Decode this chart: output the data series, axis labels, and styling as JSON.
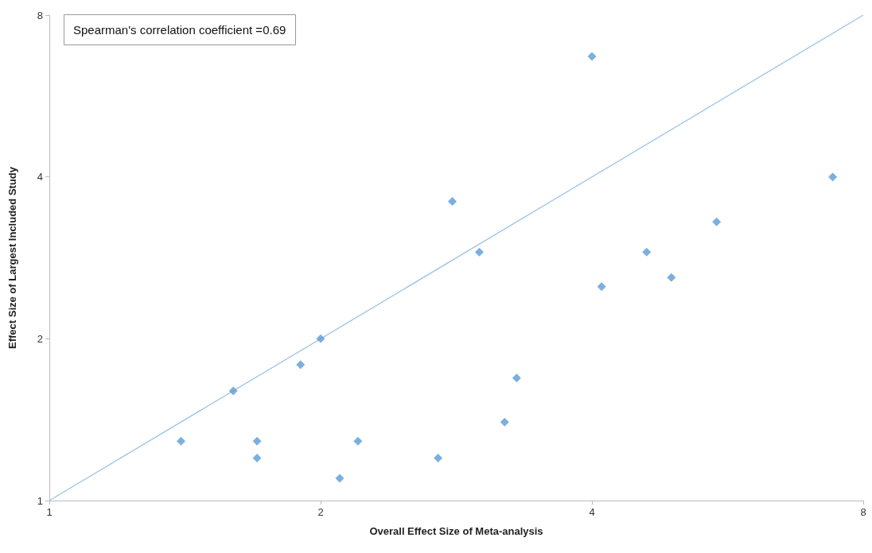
{
  "chart_data": {
    "type": "scatter",
    "xlabel": "Overall Effect Size of Meta-analysis",
    "ylabel": "Effect Size of Largest Included Study",
    "annotations": [
      "Spearman's correlation coefficient =0.69"
    ],
    "log": "xy",
    "grid": false,
    "marker": "diamond",
    "xlim": [
      1,
      8
    ],
    "xticks": [
      1,
      2,
      4,
      8
    ],
    "ylim": [
      1,
      8
    ],
    "yticks": [
      1,
      2,
      4,
      8
    ],
    "series": [
      {
        "type": "scatter",
        "color": "#5b9bd5",
        "x": [
          1.4,
          1.6,
          1.7,
          1.7,
          1.9,
          2,
          2.1,
          2.2,
          2.7,
          2.8,
          3,
          3.2,
          3.3,
          4,
          4.1,
          4.6,
          4.9,
          5.5,
          7.4
        ],
        "values": [
          1.29,
          1.6,
          1.29,
          1.2,
          1.79,
          2,
          1.1,
          1.29,
          1.2,
          3.6,
          2.9,
          1.4,
          1.69,
          6.7,
          2.5,
          2.9,
          2.6,
          3.3,
          4
        ]
      },
      {
        "type": "line",
        "color": "#9dc3e6",
        "line_style": "solid",
        "marker": "none",
        "x": [
          1,
          8
        ],
        "values": [
          1,
          8
        ]
      }
    ]
  }
}
